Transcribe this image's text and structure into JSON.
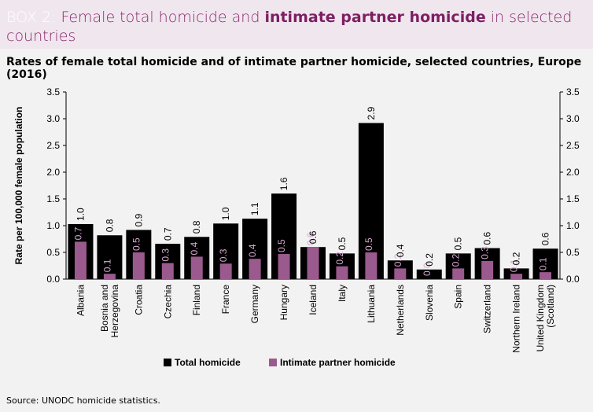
{
  "header": {
    "box_label": "BOX 2:",
    "title_part1": " Female total homicide and ",
    "title_highlight": "intimate partner homicide",
    "title_part2": " in selected countries"
  },
  "subtitle": "Rates of female total homicide and of intimate partner homicide, selected countries, Europe (2016)",
  "source": "Source: UNODC homicide statistics.",
  "colors": {
    "total": "#000000",
    "ipv": "#9a5a8e",
    "ipv_label": "#d8a8d0",
    "header_bg": "#f0e6ee",
    "accent": "#8b2a6f"
  },
  "chart_data": {
    "type": "bar",
    "ylabel": "Rate per 100,000 female population",
    "ylim": [
      0,
      3.5
    ],
    "yticks": [
      "0.0",
      "0.5",
      "1.0",
      "1.5",
      "2.0",
      "2.5",
      "3.0",
      "3.5"
    ],
    "categories": [
      [
        "Albania"
      ],
      [
        "Bosnia and",
        "Herzegovina"
      ],
      [
        "Croatia"
      ],
      [
        "Czechia"
      ],
      [
        "Finland"
      ],
      [
        "France"
      ],
      [
        "Germany"
      ],
      [
        "Hungary"
      ],
      [
        "Iceland"
      ],
      [
        "Italy"
      ],
      [
        "Lithuania"
      ],
      [
        "Netherlands"
      ],
      [
        "Slovenia"
      ],
      [
        "Spain"
      ],
      [
        "Switzerland"
      ],
      [
        "Northern Ireland"
      ],
      [
        "United Kingdom",
        "(Scotland)"
      ]
    ],
    "series": [
      {
        "name": "Total homicide",
        "values": [
          1.03,
          0.82,
          0.92,
          0.66,
          0.79,
          1.04,
          1.13,
          1.6,
          0.6,
          0.48,
          2.92,
          0.35,
          0.18,
          0.48,
          0.58,
          0.2,
          0.57
        ],
        "labels": [
          "1.0",
          "0.8",
          "0.9",
          "0.7",
          "0.8",
          "1.0",
          "1.1",
          "1.6",
          "0.6",
          "0.5",
          "2.9",
          "0.4",
          "0.2",
          "0.5",
          "0.6",
          "0.2",
          "0.6"
        ]
      },
      {
        "name": "Intimate partner homicide",
        "values": [
          0.7,
          0.1,
          0.5,
          0.3,
          0.42,
          0.29,
          0.38,
          0.47,
          0.6,
          0.24,
          0.5,
          0.2,
          0.0,
          0.2,
          0.34,
          0.1,
          0.13
        ],
        "labels": [
          "0.7",
          "0.1",
          "0.5",
          "0.3",
          "0.4",
          "0.3",
          "0.4",
          "0.5",
          "0.6",
          "0.2",
          "0.5",
          "0.2",
          "0.0",
          "0.2",
          "0.3",
          "0.1",
          "0.1"
        ]
      }
    ],
    "legend": [
      "Total homicide",
      "Intimate partner homicide"
    ],
    "legend_position": "bottom"
  }
}
